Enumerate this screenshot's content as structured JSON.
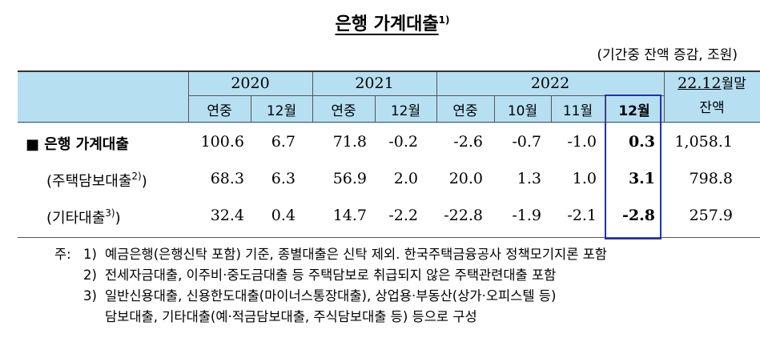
{
  "header": {
    "title": "은행 가계대출",
    "title_sup": "1)",
    "unit": "(기간중 잔액 증감, 조원)"
  },
  "table": {
    "groups": [
      "2020",
      "2021",
      "2022"
    ],
    "balance_head": {
      "underlined": "22.12",
      "rest": "월말"
    },
    "columns": [
      "연중",
      "12월",
      "연중",
      "12월",
      "연중",
      "10월",
      "11월",
      "12월",
      "잔액"
    ],
    "rows": [
      {
        "label": "■ 은행 가계대출",
        "values": [
          "100.6",
          "6.7",
          "71.8",
          "-0.2",
          "-2.6",
          "-0.7",
          "-1.0",
          "0.3",
          "1,058.1"
        ]
      },
      {
        "label": "(주택담보대출",
        "label_sup": "2)",
        "label_end": ")",
        "values": [
          "68.3",
          "6.3",
          "56.9",
          "2.0",
          "20.0",
          "1.3",
          "1.0",
          "3.1",
          "798.8"
        ]
      },
      {
        "label": "(기타대출",
        "label_sup": "3)",
        "label_end": ")",
        "values": [
          "32.4",
          "0.4",
          "14.7",
          "-2.2",
          "-22.8",
          "-1.9",
          "-2.1",
          "-2.8",
          "257.9"
        ]
      }
    ]
  },
  "notes": {
    "prefix": "주:",
    "items": [
      {
        "num": "1)",
        "lines": [
          "예금은행(은행신탁 포함) 기준, 종별대출은 신탁 제외. 한국주택금융공사 정책모기지론 포함"
        ]
      },
      {
        "num": "2)",
        "lines": [
          "전세자금대출, 이주비·중도금대출 등 주택담보로 취급되지 않은 주택관련대출 포함"
        ]
      },
      {
        "num": "3)",
        "lines": [
          "일반신용대출, 신용한도대출(마이너스통장대출), 상업용·부동산(상가·오피스텔 등)",
          "담보대출, 기타대출(예·적금담보대출, 주식담보대출 등) 등으로 구성"
        ]
      }
    ]
  }
}
